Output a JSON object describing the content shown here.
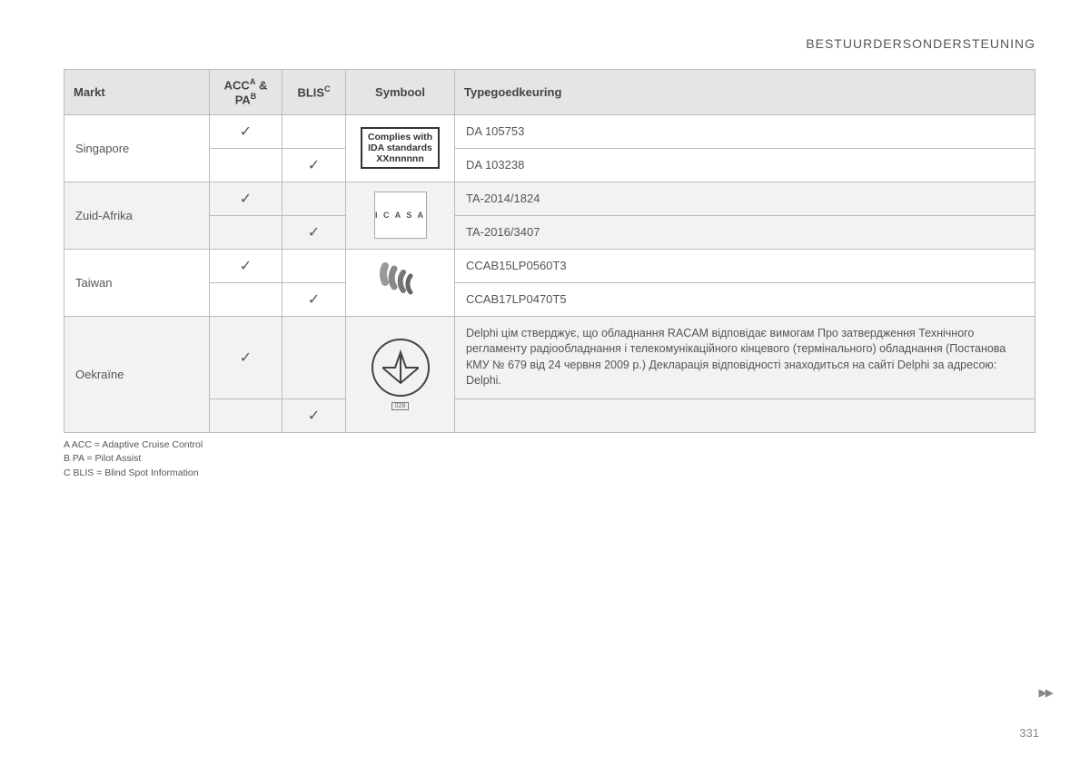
{
  "header": {
    "title": "BESTUURDERSONDERSTEUNING"
  },
  "table": {
    "columns": {
      "market": "Markt",
      "acc_pa_html": "ACC<sup>A</sup> & PA<sup>B</sup>",
      "blis_html": "BLIS<sup>C</sup>",
      "symbol": "Symbool",
      "approval": "Typegoedkeuring"
    },
    "col_widths": [
      "160px",
      "80px",
      "70px",
      "120px",
      "auto"
    ],
    "header_bg": "#e5e5e5",
    "border_color": "#bbbbbb",
    "alt_bg": "#f2f2f2",
    "rows": [
      {
        "market": "Singapore",
        "alt": false,
        "symbol": {
          "type": "ida",
          "line1": "Complies with",
          "line2": "IDA standards",
          "line3": "XXnnnnnn"
        },
        "sub": [
          {
            "acc": "✓",
            "blis": "",
            "approval": "DA 105753"
          },
          {
            "acc": "",
            "blis": "✓",
            "approval": "DA 103238"
          }
        ]
      },
      {
        "market": "Zuid-Afrika",
        "alt": true,
        "symbol": {
          "type": "icasa",
          "text": "I C A S A"
        },
        "sub": [
          {
            "acc": "✓",
            "blis": "",
            "approval": "TA-2014/1824"
          },
          {
            "acc": "",
            "blis": "✓",
            "approval": "TA-2016/3407"
          }
        ]
      },
      {
        "market": "Taiwan",
        "alt": false,
        "symbol": {
          "type": "ncc"
        },
        "sub": [
          {
            "acc": "✓",
            "blis": "",
            "approval": "CCAB15LP0560T3"
          },
          {
            "acc": "",
            "blis": "✓",
            "approval": "CCAB17LP0470T5"
          }
        ]
      },
      {
        "market": "Oekraïne",
        "alt": true,
        "symbol": {
          "type": "ua_star",
          "num": "028"
        },
        "sub": [
          {
            "acc": "✓",
            "blis": "",
            "approval": "Delphi цім стверджує, що обладнання RACAM відповідає вимогам Про затвердження Технічного регламенту радіообладнання і телекомунікаційного кінцевого (термінального) обладнання (Постанова КМУ № 679 від 24 червня 2009 р.) Декларація відповідності знаходиться на сайті Delphi за адресою: Delphi.",
            "approval_tall": true
          },
          {
            "acc": "",
            "blis": "✓",
            "approval": ""
          }
        ]
      }
    ]
  },
  "footnotes": [
    "A  ACC = Adaptive Cruise Control",
    "B  PA = Pilot Assist",
    "C  BLIS = Blind Spot Information"
  ],
  "page_arrows": "▶▶",
  "page_number": "331",
  "colors": {
    "text": "#4a4a4a",
    "muted": "#888888",
    "background": "#ffffff"
  }
}
